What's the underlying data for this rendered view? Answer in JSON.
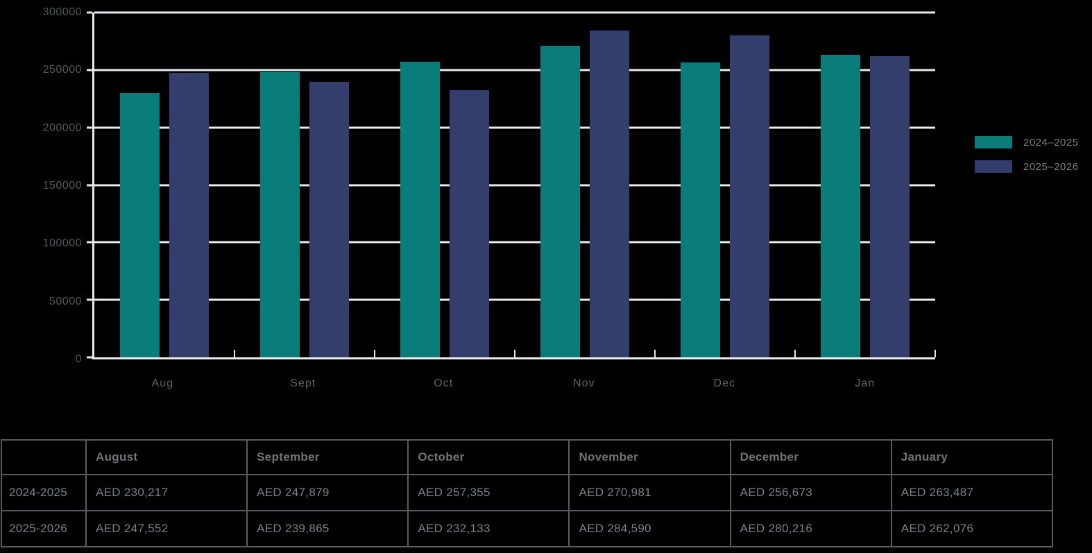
{
  "chart_data": {
    "type": "bar",
    "categories": [
      "Aug",
      "Sept",
      "Oct",
      "Nov",
      "Dec",
      "Jan"
    ],
    "series": [
      {
        "name": "2024–2025",
        "color": "#0a7d7b",
        "values": [
          230217,
          247879,
          257355,
          270981,
          256673,
          263487
        ]
      },
      {
        "name": "2025–2026",
        "color": "#343e6c",
        "values": [
          247552,
          239865,
          232133,
          284590,
          280216,
          262076
        ]
      }
    ],
    "title": "",
    "xlabel": "",
    "ylabel": "",
    "ylim": [
      0,
      300000
    ],
    "ytick_step": 50000,
    "ytick_labels": [
      "0",
      "50000",
      "100000",
      "150000",
      "200000",
      "250000",
      "300000"
    ],
    "grid": true,
    "legend_position": "right",
    "background": "#000000",
    "gridline_color": "#e9eaeb"
  },
  "table": {
    "corner_label": "",
    "columns": [
      "August",
      "September",
      "October",
      "November",
      "December",
      "January"
    ],
    "rows": [
      {
        "label": "2024-2025",
        "values": [
          "AED 230,217",
          "AED 247,879",
          "AED 257,355",
          "AED 270,981",
          "AED 256,673",
          "AED 263,487"
        ]
      },
      {
        "label": "2025-2026",
        "values": [
          "AED 247,552",
          "AED 239,865",
          "AED 232,133",
          "AED 284,590",
          "AED 280,216",
          "AED 262,076"
        ]
      }
    ]
  }
}
